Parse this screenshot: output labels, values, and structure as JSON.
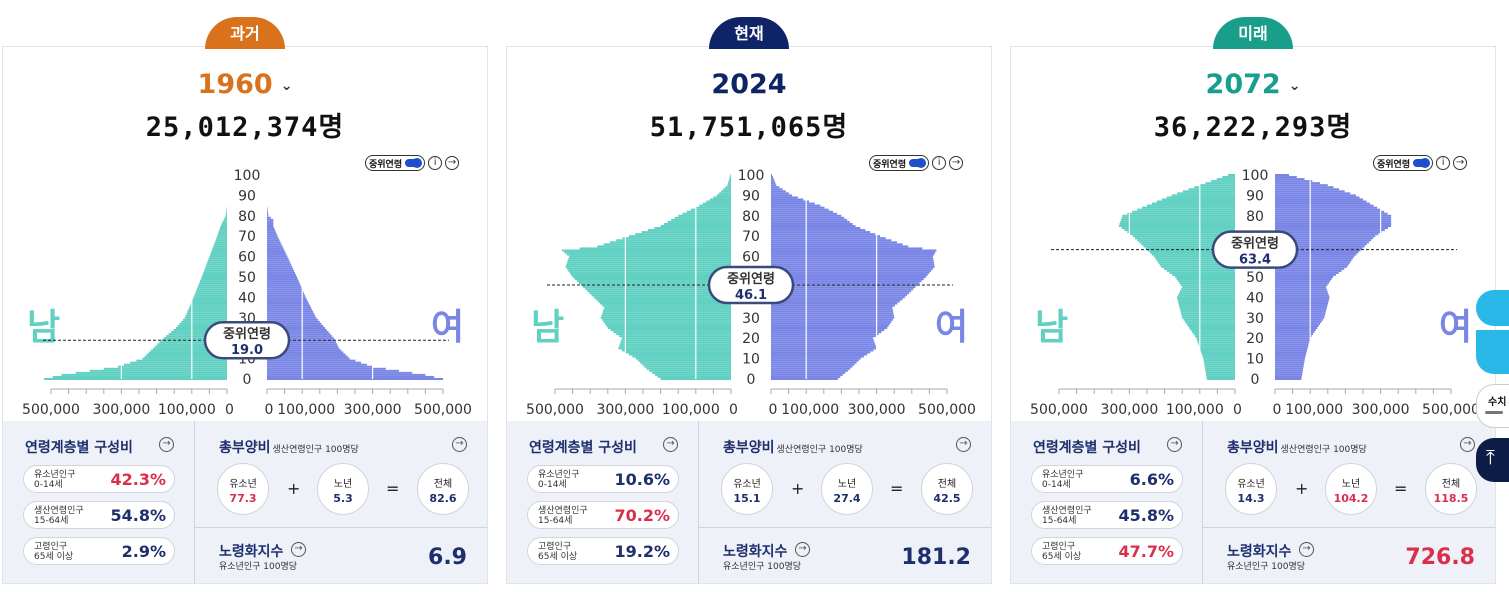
{
  "colors": {
    "past": "#d9721c",
    "present": "#0e2467",
    "future": "#1a9e8c",
    "male": "#5fd0c1",
    "female": "#7a86e6",
    "accent": "#1c4fc9",
    "red": "#d8304b",
    "navy": "#1e2f6e"
  },
  "ui": {
    "median_toggle_label": "중위연령",
    "male_label": "남",
    "female_label": "여",
    "median_label": "중위연령",
    "composition_title": "연령계층별 구성비",
    "dependency_title": "총부양비",
    "dependency_sub": "생산연령인구 100명당",
    "child_label": "유소년",
    "elder_label": "노년",
    "total_label": "전체",
    "aging_title": "노령화지수",
    "aging_sub": "유소년인구 100명당",
    "groups": [
      {
        "l1": "유소년인구",
        "l2": "0-14세"
      },
      {
        "l1": "생산연령인구",
        "l2": "15-64세"
      },
      {
        "l1": "고령인구",
        "l2": "65세 이상"
      }
    ],
    "plus": "+",
    "equals": "=",
    "side_text": "수치"
  },
  "chart_data": [
    {
      "type": "bar",
      "tab": "과거",
      "year": "1960",
      "population": "25,012,374명",
      "median": "19.0",
      "age_ticks": [
        "100",
        "90",
        "80",
        "70",
        "60",
        "50",
        "40",
        "30",
        "20",
        "10",
        "0"
      ],
      "x_ticks_left": [
        "500,000",
        "300,000",
        "100,000",
        "0"
      ],
      "x_ticks_right": [
        "0",
        "100,000",
        "300,000",
        "500,000"
      ],
      "xlim": [
        0,
        500000
      ],
      "age_range": [
        0,
        100
      ],
      "male_keypoints": [
        [
          0,
          520000
        ],
        [
          2,
          470000
        ],
        [
          6,
          310000
        ],
        [
          10,
          240000
        ],
        [
          15,
          210000
        ],
        [
          20,
          180000
        ],
        [
          25,
          145000
        ],
        [
          30,
          120000
        ],
        [
          40,
          95000
        ],
        [
          50,
          72000
        ],
        [
          60,
          50000
        ],
        [
          70,
          28000
        ],
        [
          75,
          18000
        ],
        [
          80,
          4000
        ],
        [
          85,
          0
        ]
      ],
      "female_keypoints": [
        [
          0,
          500000
        ],
        [
          2,
          450000
        ],
        [
          6,
          300000
        ],
        [
          10,
          235000
        ],
        [
          15,
          205000
        ],
        [
          20,
          190000
        ],
        [
          25,
          165000
        ],
        [
          30,
          140000
        ],
        [
          40,
          110000
        ],
        [
          50,
          85000
        ],
        [
          60,
          58000
        ],
        [
          70,
          30000
        ],
        [
          75,
          18000
        ],
        [
          78,
          18000
        ],
        [
          80,
          4000
        ],
        [
          85,
          0
        ]
      ],
      "composition": [
        "42.3%",
        "54.8%",
        "2.9%"
      ],
      "composition_red": [
        true,
        false,
        false
      ],
      "dependency": {
        "child": "77.3",
        "elder": "5.3",
        "total": "82.6"
      },
      "dep_red": [
        true,
        false,
        false
      ],
      "aging": "6.9",
      "aging_red": false
    },
    {
      "type": "bar",
      "tab": "현재",
      "year": "2024",
      "population": "51,751,065명",
      "median": "46.1",
      "age_ticks": [
        "100",
        "90",
        "80",
        "70",
        "60",
        "50",
        "40",
        "30",
        "20",
        "10",
        "0"
      ],
      "x_ticks_left": [
        "500,000",
        "300,000",
        "100,000",
        "0"
      ],
      "x_ticks_right": [
        "0",
        "100,000",
        "300,000",
        "500,000"
      ],
      "xlim": [
        0,
        500000
      ],
      "age_range": [
        0,
        100
      ],
      "male_keypoints": [
        [
          0,
          200000
        ],
        [
          5,
          240000
        ],
        [
          10,
          270000
        ],
        [
          15,
          320000
        ],
        [
          20,
          310000
        ],
        [
          25,
          350000
        ],
        [
          30,
          370000
        ],
        [
          35,
          360000
        ],
        [
          40,
          390000
        ],
        [
          45,
          420000
        ],
        [
          50,
          450000
        ],
        [
          55,
          470000
        ],
        [
          60,
          460000
        ],
        [
          63,
          480000
        ],
        [
          65,
          380000
        ],
        [
          70,
          290000
        ],
        [
          75,
          200000
        ],
        [
          80,
          150000
        ],
        [
          85,
          90000
        ],
        [
          90,
          40000
        ],
        [
          95,
          10000
        ],
        [
          100,
          2000
        ]
      ],
      "female_keypoints": [
        [
          0,
          190000
        ],
        [
          5,
          225000
        ],
        [
          10,
          255000
        ],
        [
          15,
          300000
        ],
        [
          20,
          290000
        ],
        [
          25,
          330000
        ],
        [
          30,
          350000
        ],
        [
          35,
          345000
        ],
        [
          40,
          380000
        ],
        [
          45,
          410000
        ],
        [
          50,
          440000
        ],
        [
          55,
          465000
        ],
        [
          60,
          460000
        ],
        [
          63,
          470000
        ],
        [
          65,
          390000
        ],
        [
          70,
          310000
        ],
        [
          75,
          240000
        ],
        [
          80,
          200000
        ],
        [
          85,
          140000
        ],
        [
          90,
          60000
        ],
        [
          95,
          15000
        ],
        [
          100,
          3000
        ]
      ],
      "composition": [
        "10.6%",
        "70.2%",
        "19.2%"
      ],
      "composition_red": [
        false,
        true,
        false
      ],
      "dependency": {
        "child": "15.1",
        "elder": "27.4",
        "total": "42.5"
      },
      "dep_red": [
        false,
        false,
        false
      ],
      "aging": "181.2",
      "aging_red": false
    },
    {
      "type": "bar",
      "tab": "미래",
      "year": "2072",
      "population": "36,222,293명",
      "median": "63.4",
      "age_ticks": [
        "100",
        "90",
        "80",
        "70",
        "60",
        "50",
        "40",
        "30",
        "20",
        "10",
        "0"
      ],
      "x_ticks_left": [
        "500,000",
        "300,000",
        "100,000",
        "0"
      ],
      "x_ticks_right": [
        "0",
        "100,000",
        "300,000",
        "500,000"
      ],
      "xlim": [
        0,
        500000
      ],
      "age_range": [
        0,
        100
      ],
      "male_keypoints": [
        [
          0,
          80000
        ],
        [
          10,
          90000
        ],
        [
          20,
          110000
        ],
        [
          30,
          150000
        ],
        [
          40,
          165000
        ],
        [
          45,
          150000
        ],
        [
          50,
          170000
        ],
        [
          55,
          210000
        ],
        [
          60,
          230000
        ],
        [
          65,
          260000
        ],
        [
          70,
          290000
        ],
        [
          75,
          330000
        ],
        [
          80,
          320000
        ],
        [
          85,
          250000
        ],
        [
          90,
          180000
        ],
        [
          95,
          100000
        ],
        [
          100,
          20000
        ]
      ],
      "female_keypoints": [
        [
          0,
          75000
        ],
        [
          10,
          85000
        ],
        [
          20,
          100000
        ],
        [
          30,
          140000
        ],
        [
          40,
          155000
        ],
        [
          45,
          145000
        ],
        [
          50,
          165000
        ],
        [
          55,
          205000
        ],
        [
          60,
          225000
        ],
        [
          65,
          255000
        ],
        [
          70,
          285000
        ],
        [
          75,
          330000
        ],
        [
          80,
          330000
        ],
        [
          85,
          280000
        ],
        [
          90,
          230000
        ],
        [
          95,
          150000
        ],
        [
          100,
          40000
        ]
      ],
      "composition": [
        "6.6%",
        "45.8%",
        "47.7%"
      ],
      "composition_red": [
        false,
        false,
        true
      ],
      "dependency": {
        "child": "14.3",
        "elder": "104.2",
        "total": "118.5"
      },
      "dep_red": [
        false,
        true,
        true
      ],
      "aging": "726.8",
      "aging_red": true
    }
  ]
}
